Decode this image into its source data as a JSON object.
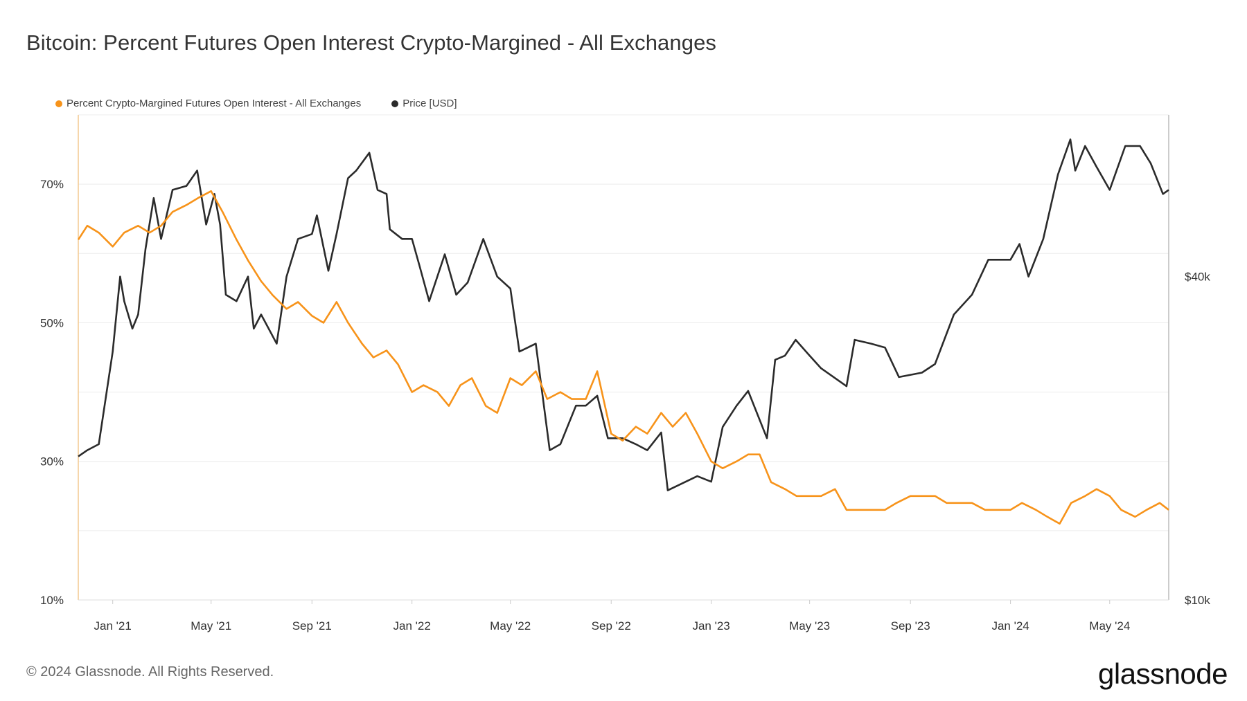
{
  "title": "Bitcoin: Percent Futures Open Interest Crypto-Margined - All Exchanges",
  "footer": "© 2024 Glassnode. All Rights Reserved.",
  "logo": "glassnode",
  "colors": {
    "oi_series": "#f7931a",
    "price_series": "#2b2b2b",
    "grid": "#ececec"
  },
  "chart_data": {
    "type": "line",
    "legend_position": "top-left",
    "grid": true,
    "x_ticks": [
      "Jan '21",
      "May '21",
      "Sep '21",
      "Jan '22",
      "May '22",
      "Sep '22",
      "Jan '23",
      "May '23",
      "Sep '23",
      "Jan '24",
      "May '24"
    ],
    "x_range": [
      "2020-11-20",
      "2024-07-12"
    ],
    "y_left": {
      "ticks": [
        "10%",
        "30%",
        "50%",
        "70%"
      ],
      "tick_values": [
        10,
        30,
        50,
        70
      ],
      "range": [
        10,
        80
      ]
    },
    "y_right": {
      "ticks": [
        "$10k",
        "$40k"
      ],
      "tick_values": [
        10000,
        40000
      ],
      "scale": "log",
      "range": [
        10000,
        80000
      ]
    },
    "series": [
      {
        "name": "Percent Crypto-Margined Futures Open Interest - All Exchanges",
        "axis": "left",
        "points": [
          [
            "2020-11-20",
            62
          ],
          [
            "2020-12-01",
            64
          ],
          [
            "2020-12-15",
            63
          ],
          [
            "2021-01-01",
            61
          ],
          [
            "2021-01-15",
            63
          ],
          [
            "2021-02-01",
            64
          ],
          [
            "2021-02-15",
            63
          ],
          [
            "2021-03-01",
            64
          ],
          [
            "2021-03-15",
            66
          ],
          [
            "2021-04-01",
            67
          ],
          [
            "2021-04-15",
            68
          ],
          [
            "2021-05-01",
            69
          ],
          [
            "2021-05-15",
            66
          ],
          [
            "2021-06-01",
            62
          ],
          [
            "2021-06-15",
            59
          ],
          [
            "2021-07-01",
            56
          ],
          [
            "2021-07-15",
            54
          ],
          [
            "2021-08-01",
            52
          ],
          [
            "2021-08-15",
            53
          ],
          [
            "2021-09-01",
            51
          ],
          [
            "2021-09-15",
            50
          ],
          [
            "2021-10-01",
            53
          ],
          [
            "2021-10-15",
            50
          ],
          [
            "2021-11-01",
            47
          ],
          [
            "2021-11-15",
            45
          ],
          [
            "2021-12-01",
            46
          ],
          [
            "2021-12-15",
            44
          ],
          [
            "2022-01-01",
            40
          ],
          [
            "2022-01-15",
            41
          ],
          [
            "2022-02-01",
            40
          ],
          [
            "2022-02-15",
            38
          ],
          [
            "2022-03-01",
            41
          ],
          [
            "2022-03-15",
            42
          ],
          [
            "2022-04-01",
            38
          ],
          [
            "2022-04-15",
            37
          ],
          [
            "2022-05-01",
            42
          ],
          [
            "2022-05-15",
            41
          ],
          [
            "2022-06-01",
            43
          ],
          [
            "2022-06-15",
            39
          ],
          [
            "2022-07-01",
            40
          ],
          [
            "2022-07-15",
            39
          ],
          [
            "2022-08-01",
            39
          ],
          [
            "2022-08-15",
            43
          ],
          [
            "2022-09-01",
            34
          ],
          [
            "2022-09-15",
            33
          ],
          [
            "2022-10-01",
            35
          ],
          [
            "2022-10-15",
            34
          ],
          [
            "2022-11-01",
            37
          ],
          [
            "2022-11-15",
            35
          ],
          [
            "2022-12-01",
            37
          ],
          [
            "2022-12-15",
            34
          ],
          [
            "2023-01-01",
            30
          ],
          [
            "2023-01-15",
            29
          ],
          [
            "2023-02-01",
            30
          ],
          [
            "2023-02-15",
            31
          ],
          [
            "2023-03-01",
            31
          ],
          [
            "2023-03-15",
            27
          ],
          [
            "2023-04-01",
            26
          ],
          [
            "2023-04-15",
            25
          ],
          [
            "2023-05-01",
            25
          ],
          [
            "2023-05-15",
            25
          ],
          [
            "2023-06-01",
            26
          ],
          [
            "2023-06-15",
            23
          ],
          [
            "2023-07-01",
            23
          ],
          [
            "2023-07-15",
            23
          ],
          [
            "2023-08-01",
            23
          ],
          [
            "2023-08-15",
            24
          ],
          [
            "2023-09-01",
            25
          ],
          [
            "2023-09-15",
            25
          ],
          [
            "2023-10-01",
            25
          ],
          [
            "2023-10-15",
            24
          ],
          [
            "2023-11-01",
            24
          ],
          [
            "2023-11-15",
            24
          ],
          [
            "2023-12-01",
            23
          ],
          [
            "2023-12-15",
            23
          ],
          [
            "2024-01-01",
            23
          ],
          [
            "2024-01-15",
            24
          ],
          [
            "2024-02-01",
            23
          ],
          [
            "2024-02-15",
            22
          ],
          [
            "2024-03-01",
            21
          ],
          [
            "2024-03-15",
            24
          ],
          [
            "2024-04-01",
            25
          ],
          [
            "2024-04-15",
            26
          ],
          [
            "2024-05-01",
            25
          ],
          [
            "2024-05-15",
            23
          ],
          [
            "2024-06-01",
            22
          ],
          [
            "2024-06-15",
            23
          ],
          [
            "2024-07-01",
            24
          ],
          [
            "2024-07-12",
            23
          ]
        ]
      },
      {
        "name": "Price [USD]",
        "axis": "right",
        "points": [
          [
            "2020-11-20",
            18500
          ],
          [
            "2020-12-01",
            19000
          ],
          [
            "2020-12-15",
            19500
          ],
          [
            "2021-01-01",
            29000
          ],
          [
            "2021-01-10",
            40000
          ],
          [
            "2021-01-15",
            36000
          ],
          [
            "2021-01-25",
            32000
          ],
          [
            "2021-02-01",
            34000
          ],
          [
            "2021-02-10",
            45000
          ],
          [
            "2021-02-20",
            56000
          ],
          [
            "2021-03-01",
            47000
          ],
          [
            "2021-03-15",
            58000
          ],
          [
            "2021-04-01",
            59000
          ],
          [
            "2021-04-14",
            63000
          ],
          [
            "2021-04-25",
            50000
          ],
          [
            "2021-05-05",
            57000
          ],
          [
            "2021-05-12",
            50000
          ],
          [
            "2021-05-19",
            37000
          ],
          [
            "2021-06-01",
            36000
          ],
          [
            "2021-06-15",
            40000
          ],
          [
            "2021-06-22",
            32000
          ],
          [
            "2021-07-01",
            34000
          ],
          [
            "2021-07-20",
            30000
          ],
          [
            "2021-08-01",
            40000
          ],
          [
            "2021-08-15",
            47000
          ],
          [
            "2021-09-01",
            48000
          ],
          [
            "2021-09-07",
            52000
          ],
          [
            "2021-09-21",
            41000
          ],
          [
            "2021-10-01",
            48000
          ],
          [
            "2021-10-15",
            61000
          ],
          [
            "2021-10-25",
            63000
          ],
          [
            "2021-11-10",
            68000
          ],
          [
            "2021-11-20",
            58000
          ],
          [
            "2021-12-01",
            57000
          ],
          [
            "2021-12-05",
            49000
          ],
          [
            "2021-12-20",
            47000
          ],
          [
            "2022-01-01",
            47000
          ],
          [
            "2022-01-10",
            42000
          ],
          [
            "2022-01-22",
            36000
          ],
          [
            "2022-02-10",
            44000
          ],
          [
            "2022-02-24",
            37000
          ],
          [
            "2022-03-10",
            39000
          ],
          [
            "2022-03-29",
            47000
          ],
          [
            "2022-04-15",
            40000
          ],
          [
            "2022-05-01",
            38000
          ],
          [
            "2022-05-12",
            29000
          ],
          [
            "2022-06-01",
            30000
          ],
          [
            "2022-06-18",
            19000
          ],
          [
            "2022-07-01",
            19500
          ],
          [
            "2022-07-20",
            23000
          ],
          [
            "2022-08-01",
            23000
          ],
          [
            "2022-08-15",
            24000
          ],
          [
            "2022-08-28",
            20000
          ],
          [
            "2022-09-15",
            20000
          ],
          [
            "2022-10-01",
            19500
          ],
          [
            "2022-10-15",
            19000
          ],
          [
            "2022-11-01",
            20500
          ],
          [
            "2022-11-09",
            16000
          ],
          [
            "2022-11-20",
            16300
          ],
          [
            "2022-12-15",
            17000
          ],
          [
            "2023-01-01",
            16600
          ],
          [
            "2023-01-15",
            21000
          ],
          [
            "2023-02-01",
            23000
          ],
          [
            "2023-02-15",
            24500
          ],
          [
            "2023-03-10",
            20000
          ],
          [
            "2023-03-20",
            28000
          ],
          [
            "2023-04-01",
            28500
          ],
          [
            "2023-04-14",
            30500
          ],
          [
            "2023-05-01",
            28500
          ],
          [
            "2023-05-15",
            27000
          ],
          [
            "2023-06-15",
            25000
          ],
          [
            "2023-06-25",
            30500
          ],
          [
            "2023-07-15",
            30000
          ],
          [
            "2023-08-01",
            29500
          ],
          [
            "2023-08-18",
            26000
          ],
          [
            "2023-09-15",
            26500
          ],
          [
            "2023-10-01",
            27500
          ],
          [
            "2023-10-24",
            34000
          ],
          [
            "2023-11-15",
            37000
          ],
          [
            "2023-12-05",
            43000
          ],
          [
            "2024-01-01",
            43000
          ],
          [
            "2024-01-12",
            46000
          ],
          [
            "2024-01-23",
            40000
          ],
          [
            "2024-02-10",
            47000
          ],
          [
            "2024-02-28",
            62000
          ],
          [
            "2024-03-14",
            72000
          ],
          [
            "2024-03-20",
            63000
          ],
          [
            "2024-04-01",
            70000
          ],
          [
            "2024-04-15",
            64000
          ],
          [
            "2024-05-01",
            58000
          ],
          [
            "2024-05-20",
            70000
          ],
          [
            "2024-06-07",
            70000
          ],
          [
            "2024-06-20",
            65000
          ],
          [
            "2024-07-05",
            57000
          ],
          [
            "2024-07-12",
            58000
          ]
        ]
      }
    ]
  }
}
